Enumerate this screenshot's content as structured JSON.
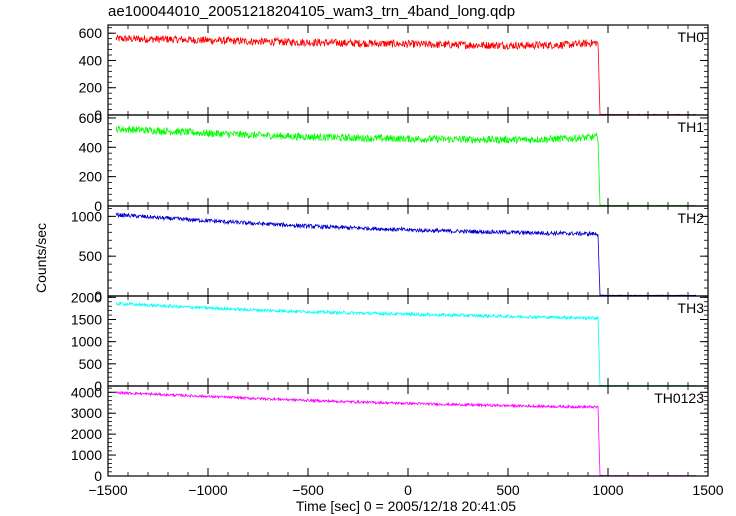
{
  "chart_data": {
    "type": "line",
    "title": "ae100044010_20051218204105_wam3_trn_4band_long.qdp",
    "xlabel": "Time [sec] 0 = 2005/12/18 20:41:05",
    "ylabel": "Counts/sec",
    "xlim": [
      -1500,
      1500
    ],
    "x_ticks": [
      "−1500",
      "−1000",
      "−500",
      "0",
      "500",
      "1000",
      "1500"
    ],
    "x_tick_values": [
      -1500,
      -1000,
      -500,
      0,
      500,
      1000,
      1500
    ],
    "panels": [
      {
        "name": "TH0",
        "color": "#ff0000",
        "ylim": [
          0,
          660
        ],
        "yticks": [
          0,
          200,
          400,
          600
        ],
        "x": [
          -1460,
          -1200,
          -1000,
          -800,
          -600,
          -400,
          -200,
          0,
          200,
          400,
          600,
          800,
          950,
          960,
          1000,
          1200,
          1440
        ],
        "y": [
          560,
          555,
          548,
          540,
          535,
          530,
          525,
          520,
          515,
          512,
          510,
          515,
          530,
          5,
          3,
          3,
          3
        ],
        "noise": 28
      },
      {
        "name": "TH1",
        "color": "#00ff00",
        "ylim": [
          0,
          620
        ],
        "yticks": [
          0,
          200,
          400,
          600
        ],
        "x": [
          -1460,
          -1200,
          -1000,
          -800,
          -600,
          -400,
          -200,
          0,
          200,
          400,
          600,
          800,
          950,
          960,
          1000,
          1200,
          1440
        ],
        "y": [
          525,
          510,
          495,
          485,
          475,
          468,
          462,
          458,
          455,
          452,
          452,
          460,
          470,
          5,
          3,
          3,
          3
        ],
        "noise": 25
      },
      {
        "name": "TH2",
        "color": "#0000cc",
        "ylim": [
          0,
          1130
        ],
        "yticks": [
          0,
          500,
          1000
        ],
        "x": [
          -1460,
          -1200,
          -1000,
          -800,
          -600,
          -400,
          -200,
          0,
          200,
          400,
          600,
          800,
          950,
          960,
          1000,
          1200,
          1440
        ],
        "y": [
          1020,
          975,
          945,
          915,
          890,
          865,
          850,
          830,
          815,
          805,
          795,
          785,
          780,
          10,
          8,
          8,
          8
        ],
        "noise": 25
      },
      {
        "name": "TH3",
        "color": "#00ffff",
        "ylim": [
          0,
          2030
        ],
        "yticks": [
          0,
          500,
          1000,
          1500,
          2000
        ],
        "x": [
          -1460,
          -1200,
          -1000,
          -800,
          -600,
          -400,
          -200,
          0,
          200,
          400,
          600,
          800,
          950,
          960,
          1000,
          1200,
          1440
        ],
        "y": [
          1860,
          1800,
          1760,
          1720,
          1690,
          1660,
          1640,
          1620,
          1600,
          1580,
          1560,
          1545,
          1530,
          15,
          10,
          10,
          10
        ],
        "noise": 35
      },
      {
        "name": "TH0123",
        "color": "#ff00ff",
        "ylim": [
          0,
          4300
        ],
        "yticks": [
          0,
          1000,
          2000,
          3000,
          4000
        ],
        "x": [
          -1460,
          -1200,
          -1000,
          -800,
          -600,
          -400,
          -200,
          0,
          200,
          400,
          600,
          800,
          950,
          960,
          1000,
          1200,
          1440
        ],
        "y": [
          3980,
          3880,
          3800,
          3720,
          3650,
          3580,
          3520,
          3470,
          3420,
          3380,
          3340,
          3310,
          3290,
          30,
          20,
          20,
          20
        ],
        "noise": 60
      }
    ],
    "grid": false,
    "legend": "panel labels at top-right of each panel"
  }
}
